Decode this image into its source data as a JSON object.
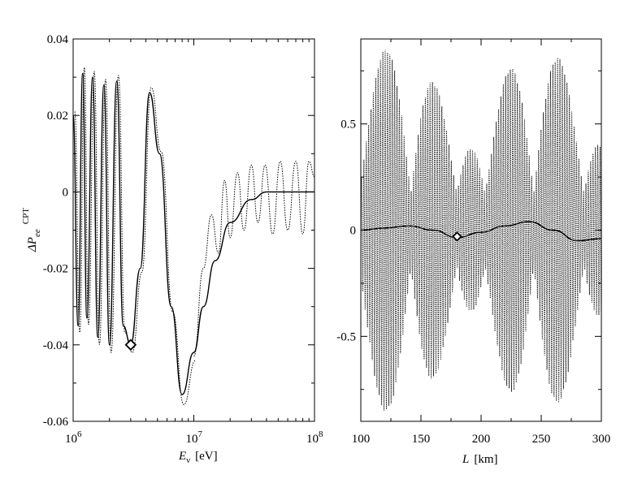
{
  "chart_data": [
    {
      "type": "line",
      "panel": "left",
      "xlabel_main": "E",
      "xlabel_sub": "ν",
      "xlabel_unit": "[eV]",
      "ylabel_main": "ΔP",
      "ylabel_sub": "ee",
      "ylabel_sup": "CPT",
      "xscale": "log",
      "xlim": [
        1000000,
        100000000
      ],
      "ylim": [
        -0.06,
        0.04
      ],
      "xticks": [
        {
          "base": "10",
          "exp": "6"
        },
        {
          "base": "10",
          "exp": "7"
        },
        {
          "base": "10",
          "exp": "8"
        }
      ],
      "yticks": [
        "0.04",
        "0.02",
        "0",
        "-0.02",
        "-0.04",
        "-0.06"
      ],
      "marker": {
        "shape": "diamond",
        "x": 3000000,
        "y": -0.04
      },
      "series": [
        {
          "style": "solid",
          "x": [
            1000000,
            1100000,
            1200000,
            1300000,
            1450000,
            1600000,
            1800000,
            2000000,
            2300000,
            2600000,
            3000000,
            3600000,
            4300000,
            5200000,
            6500000,
            8000000,
            10000000,
            12000000,
            15000000,
            20000000,
            30000000,
            40000000,
            60000000,
            100000000
          ],
          "y": [
            0.02,
            -0.035,
            0.031,
            -0.033,
            0.03,
            -0.038,
            0.028,
            -0.04,
            0.029,
            -0.035,
            -0.04,
            -0.02,
            0.026,
            0.01,
            -0.03,
            -0.053,
            -0.042,
            -0.03,
            -0.018,
            -0.008,
            -0.002,
            0.0,
            0.0,
            0.0
          ]
        },
        {
          "style": "dotted",
          "x": [
            10000000,
            12000000,
            14000000,
            16000000,
            18000000,
            20000000,
            23000000,
            26000000,
            30000000,
            34000000,
            39000000,
            45000000,
            52000000,
            60000000,
            70000000,
            80000000,
            90000000,
            100000000
          ],
          "y": [
            -0.043,
            -0.02,
            -0.006,
            -0.016,
            0.003,
            -0.012,
            0.005,
            -0.01,
            0.007,
            -0.008,
            0.007,
            -0.011,
            0.008,
            -0.01,
            0.008,
            -0.011,
            0.008,
            0.004
          ]
        }
      ]
    },
    {
      "type": "line",
      "panel": "right",
      "xlabel_main": "L",
      "xlabel_unit": "[km]",
      "xlim": [
        100,
        300
      ],
      "ylim": [
        -0.9,
        0.9
      ],
      "xticks": [
        "100",
        "150",
        "200",
        "250",
        "300"
      ],
      "yticks": [
        "0.5",
        "0",
        "-0.5"
      ],
      "marker": {
        "shape": "diamond",
        "x": 180,
        "y": -0.03
      },
      "series": [
        {
          "style": "solid",
          "x": [
            100,
            120,
            140,
            160,
            180,
            200,
            220,
            240,
            260,
            280,
            300
          ],
          "y": [
            0.0,
            0.01,
            0.02,
            0.0,
            -0.035,
            -0.01,
            0.02,
            0.04,
            0.0,
            -0.05,
            -0.04
          ]
        },
        {
          "style": "dotted",
          "envelope": [
            0.85,
            -0.85
          ],
          "x": [
            100,
            104,
            108,
            113,
            118,
            123,
            128,
            133,
            138,
            143,
            148,
            153,
            158,
            163,
            168,
            173,
            178,
            183,
            188,
            193,
            198,
            203,
            208,
            213,
            218,
            223,
            228,
            233,
            238,
            243,
            248,
            253,
            258,
            263,
            268,
            273,
            278,
            283,
            288,
            293,
            298,
            300
          ],
          "y": [
            0.0,
            0.15,
            -0.5,
            0.65,
            -0.8,
            0.6,
            -0.7,
            0.8,
            -0.6,
            0.75,
            -0.8,
            0.7,
            -0.85,
            0.65,
            -0.7,
            0.8,
            -0.75,
            0.6,
            -0.65,
            0.55,
            -0.6,
            0.5,
            -0.55,
            0.6,
            -0.7,
            0.75,
            -0.8,
            0.7,
            -0.75,
            0.8,
            -0.7,
            0.65,
            -0.8,
            0.75,
            -0.85,
            0.85,
            -0.75,
            0.7,
            -0.65,
            0.55,
            -0.5,
            0.3
          ]
        }
      ]
    }
  ]
}
